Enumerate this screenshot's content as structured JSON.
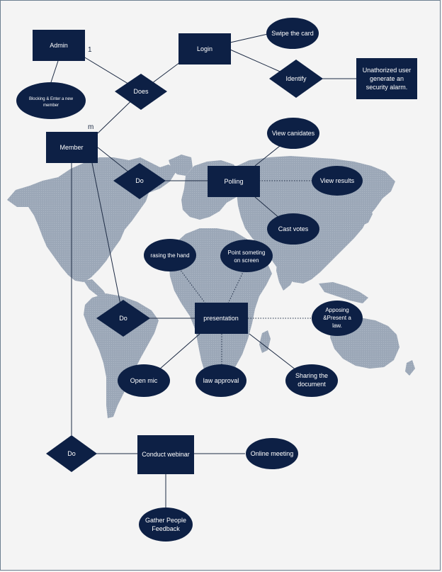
{
  "diagram": {
    "colors": {
      "shape_fill": "#0d2045",
      "map_fill": "#9ba7b7",
      "edge": "#1d2b44",
      "page_bg": "#f4f4f4"
    },
    "cardinality": {
      "one": "1",
      "many": "m"
    },
    "entities": {
      "admin": "Admin",
      "login": "Login",
      "member": "Member",
      "polling": "Polling",
      "presentation": "presentation",
      "webinar": "Conduct webinar",
      "alarm": [
        "Unathorized user",
        "generate an",
        "security alarm."
      ]
    },
    "relationships": {
      "does": "Does",
      "identify": "Identify",
      "do_polling": "Do",
      "do_presentation": "Do",
      "do_webinar": "Do"
    },
    "attributes": {
      "swipe": "Swipe the card",
      "blocking": [
        "Blocking & Enter a new",
        "member"
      ],
      "view_candidates": "View canidates",
      "view_results": "View results",
      "cast_votes": "Cast votes",
      "raising_hand": "rasing the hand",
      "point": [
        "Point someting",
        "on screen"
      ],
      "apposing": [
        "Apposing",
        "&Present a",
        "law."
      ],
      "open_mic": "Open mic",
      "law_approval": "law approval",
      "sharing": [
        "Sharing the",
        "document"
      ],
      "online_meeting": "Online meeting",
      "feedback": [
        "Gather People",
        "Feedback"
      ]
    }
  }
}
